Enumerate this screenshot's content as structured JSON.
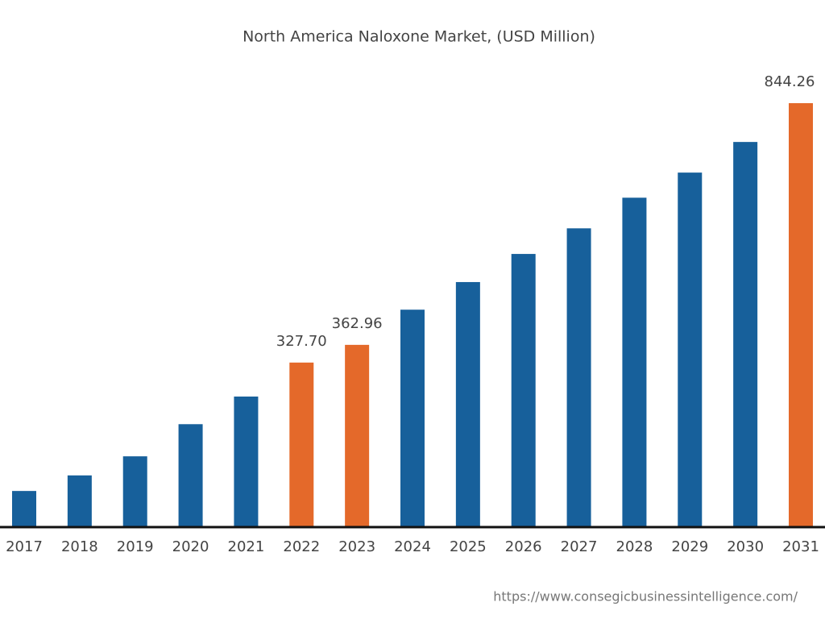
{
  "chart_data": {
    "type": "bar",
    "title": "North America Naloxone Market, (USD Million)",
    "categories": [
      "2017",
      "2018",
      "2019",
      "2020",
      "2021",
      "2022",
      "2023",
      "2024",
      "2025",
      "2026",
      "2027",
      "2028",
      "2029",
      "2030",
      "2031"
    ],
    "values": [
      72,
      103,
      141,
      205,
      260,
      327.7,
      362.96,
      433,
      488,
      544,
      595,
      656,
      706,
      767,
      844.26
    ],
    "value_labels": [
      null,
      null,
      null,
      null,
      null,
      "327.70",
      "362.96",
      null,
      null,
      null,
      null,
      null,
      null,
      null,
      "844.26"
    ],
    "colors": [
      "#17609b",
      "#17609b",
      "#17609b",
      "#17609b",
      "#17609b",
      "#e4692a",
      "#e4692a",
      "#17609b",
      "#17609b",
      "#17609b",
      "#17609b",
      "#17609b",
      "#17609b",
      "#17609b",
      "#e4692a"
    ],
    "source": "https://www.consegicbusinessintelligence.com/"
  }
}
